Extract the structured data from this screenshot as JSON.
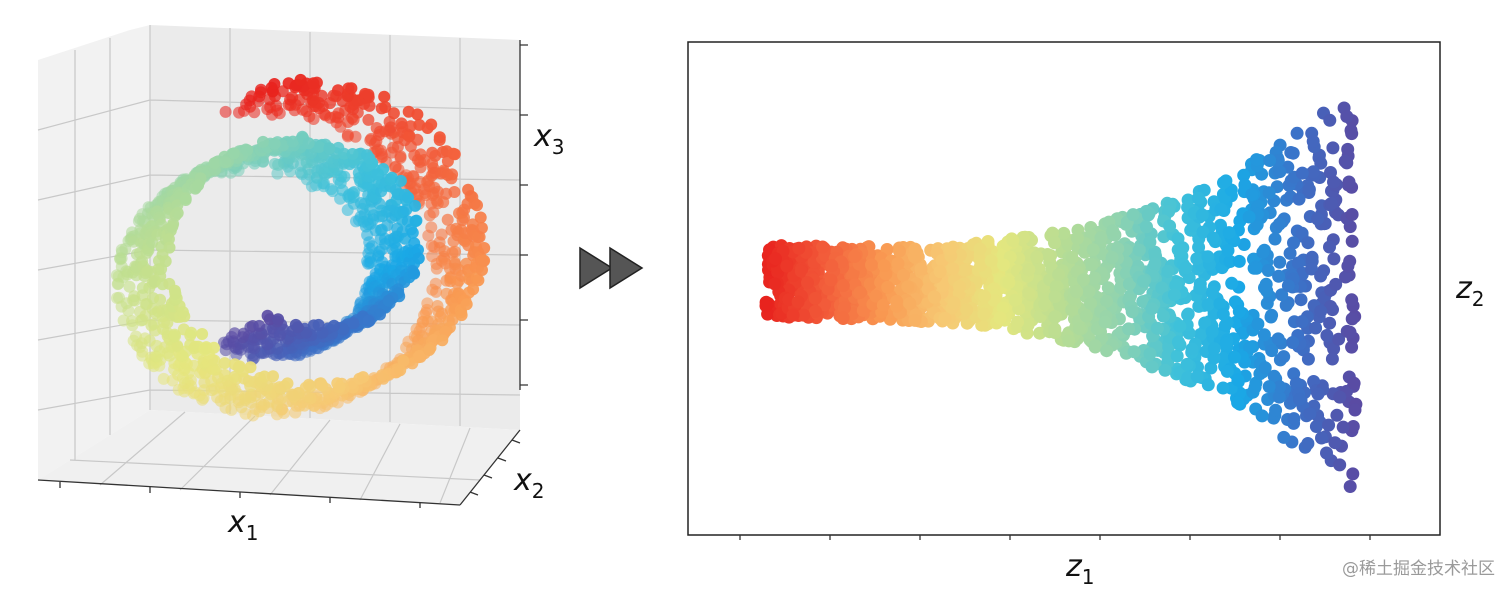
{
  "left_panel": {
    "axes": [
      {
        "letter": "x",
        "subscript": "1"
      },
      {
        "letter": "x",
        "subscript": "2"
      },
      {
        "letter": "x",
        "subscript": "3"
      }
    ]
  },
  "right_panel": {
    "axes": [
      {
        "letter": "z",
        "subscript": "1"
      },
      {
        "letter": "z",
        "subscript": "2"
      }
    ]
  },
  "watermark": "@稀土掘金技术社区"
}
